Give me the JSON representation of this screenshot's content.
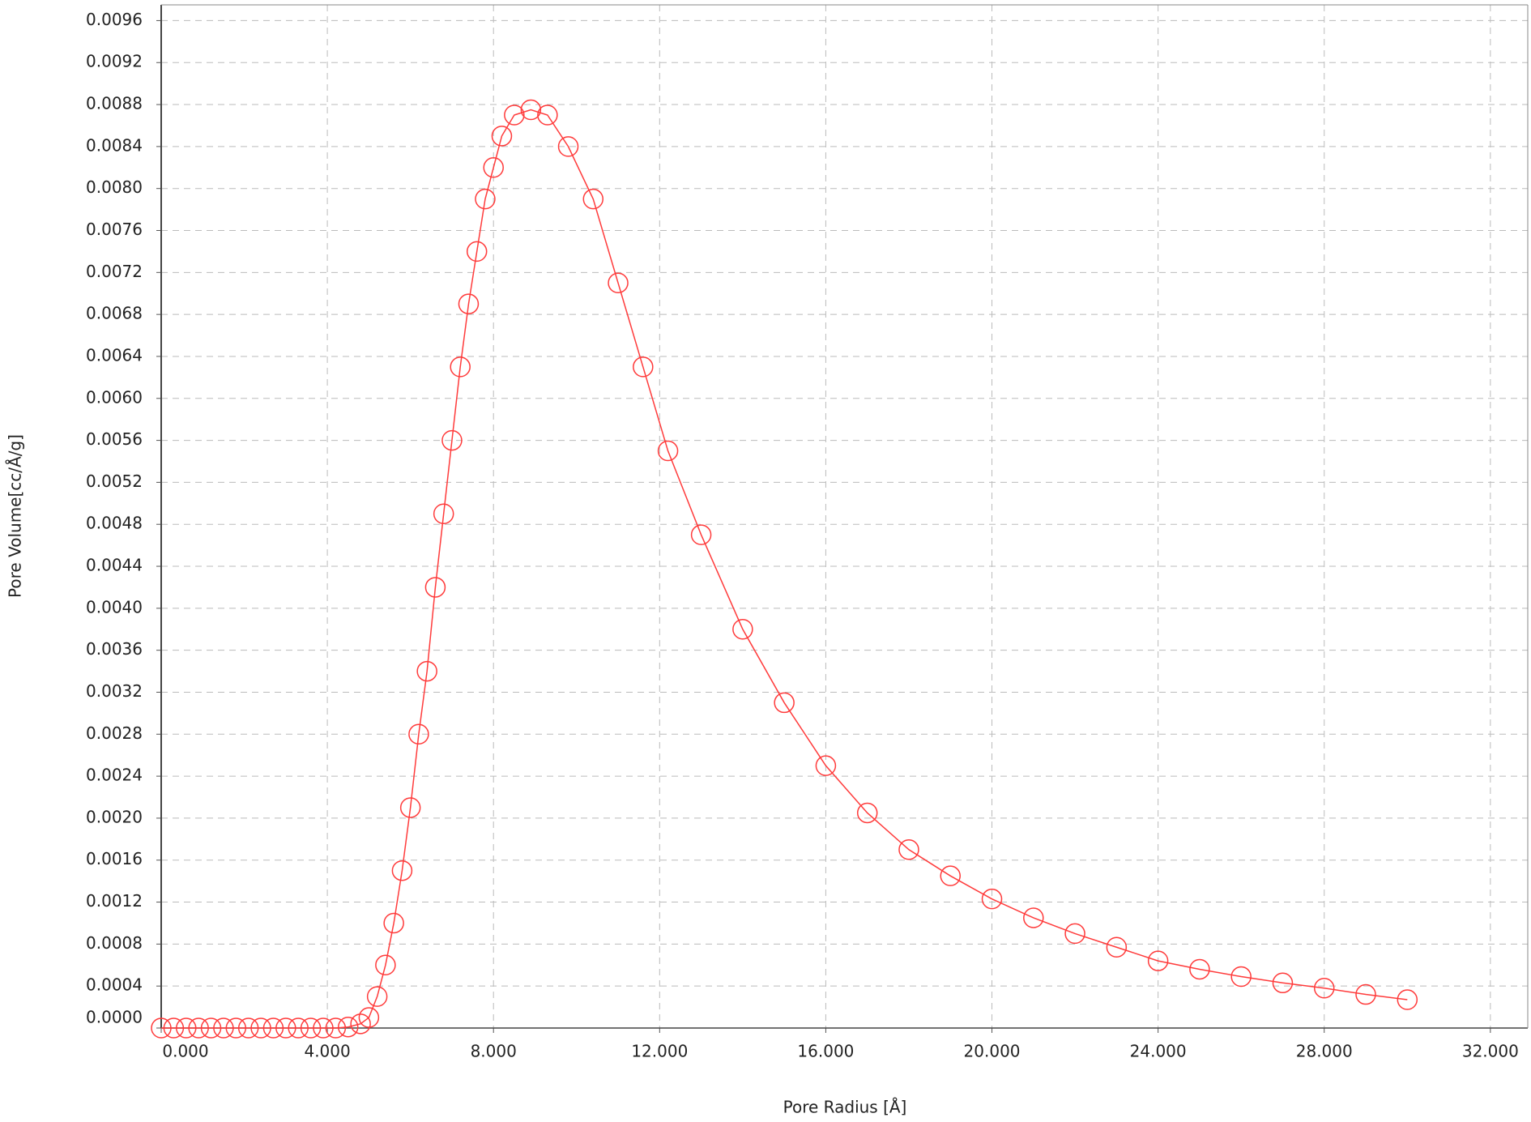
{
  "chart_data": {
    "type": "scatter",
    "x_label": "Pore Radius [Å]",
    "y_label": "Pore Volume[cc/Å/g]",
    "grid": true,
    "xlim": [
      0,
      32.9
    ],
    "ylim": [
      0,
      0.00975
    ],
    "xticks": [
      {
        "value": 0,
        "label": "0.000"
      },
      {
        "value": 4,
        "label": "4.000"
      },
      {
        "value": 8,
        "label": "8.000"
      },
      {
        "value": 12,
        "label": "12.000"
      },
      {
        "value": 16,
        "label": "16.000"
      },
      {
        "value": 20,
        "label": "20.000"
      },
      {
        "value": 24,
        "label": "24.000"
      },
      {
        "value": 28,
        "label": "28.000"
      },
      {
        "value": 32,
        "label": "32.000"
      }
    ],
    "yticks": [
      {
        "value": 0,
        "label": "0.0000"
      },
      {
        "value": 0.0004,
        "label": "0.0004"
      },
      {
        "value": 0.0008,
        "label": "0.0008"
      },
      {
        "value": 0.0012,
        "label": "0.0012"
      },
      {
        "value": 0.0016,
        "label": "0.0016"
      },
      {
        "value": 0.002,
        "label": "0.0020"
      },
      {
        "value": 0.0024,
        "label": "0.0024"
      },
      {
        "value": 0.0028,
        "label": "0.0028"
      },
      {
        "value": 0.0032,
        "label": "0.0032"
      },
      {
        "value": 0.0036,
        "label": "0.0036"
      },
      {
        "value": 0.004,
        "label": "0.0040"
      },
      {
        "value": 0.0044,
        "label": "0.0044"
      },
      {
        "value": 0.0048,
        "label": "0.0048"
      },
      {
        "value": 0.0052,
        "label": "0.0052"
      },
      {
        "value": 0.0056,
        "label": "0.0056"
      },
      {
        "value": 0.006,
        "label": "0.0060"
      },
      {
        "value": 0.0064,
        "label": "0.0064"
      },
      {
        "value": 0.0068,
        "label": "0.0068"
      },
      {
        "value": 0.0072,
        "label": "0.0072"
      },
      {
        "value": 0.0076,
        "label": "0.0076"
      },
      {
        "value": 0.008,
        "label": "0.0080"
      },
      {
        "value": 0.0084,
        "label": "0.0084"
      },
      {
        "value": 0.0088,
        "label": "0.0088"
      },
      {
        "value": 0.0092,
        "label": "0.0092"
      },
      {
        "value": 0.0096,
        "label": "0.0096"
      }
    ],
    "series": [
      {
        "color": "#ff3b3b",
        "x": [
          0,
          0.3,
          0.6,
          0.9,
          1.2,
          1.5,
          1.8,
          2.1,
          2.4,
          2.7,
          3.0,
          3.3,
          3.6,
          3.9,
          4.2,
          4.5,
          4.8,
          5.0,
          5.2,
          5.4,
          5.6,
          5.8,
          6.0,
          6.2,
          6.4,
          6.6,
          6.8,
          7.0,
          7.2,
          7.4,
          7.6,
          7.8,
          8.0,
          8.2,
          8.5,
          8.9,
          9.3,
          9.8,
          10.4,
          11.0,
          11.6,
          12.2,
          13,
          14,
          15,
          16,
          17,
          18,
          19,
          20,
          21,
          22,
          23,
          24,
          25,
          26,
          27,
          28,
          29,
          30
        ],
        "values": [
          0,
          0,
          0,
          0,
          0,
          0,
          0,
          0,
          0,
          0,
          0,
          0,
          0,
          0,
          0,
          1e-05,
          4e-05,
          0.0001,
          0.0003,
          0.0006,
          0.001,
          0.0015,
          0.0021,
          0.0028,
          0.0034,
          0.0042,
          0.0049,
          0.0056,
          0.0063,
          0.0069,
          0.0074,
          0.0079,
          0.0082,
          0.0085,
          0.0087,
          0.00875,
          0.0087,
          0.0084,
          0.0079,
          0.0071,
          0.0063,
          0.0055,
          0.0047,
          0.0038,
          0.0031,
          0.0025,
          0.00205,
          0.0017,
          0.00145,
          0.00123,
          0.00105,
          0.0009,
          0.00077,
          0.00064,
          0.00056,
          0.00049,
          0.00043,
          0.00038,
          0.00032,
          0.00027
        ]
      }
    ]
  }
}
